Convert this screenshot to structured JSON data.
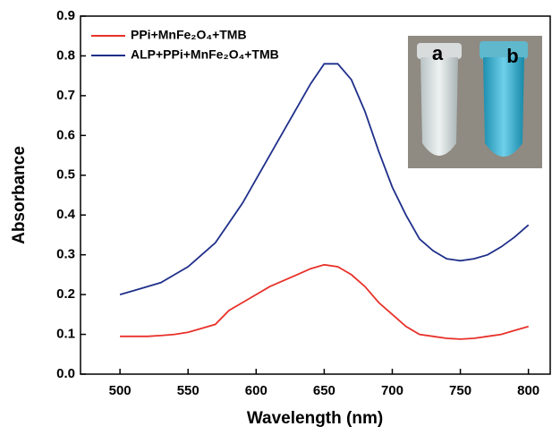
{
  "chart_data": {
    "type": "line",
    "x_label": "Wavelength (nm)",
    "y_label": "Absorbance",
    "x": [
      500,
      510,
      520,
      530,
      540,
      550,
      560,
      570,
      580,
      590,
      600,
      610,
      620,
      630,
      640,
      650,
      660,
      670,
      680,
      690,
      700,
      710,
      720,
      730,
      740,
      750,
      760,
      770,
      780,
      790,
      800
    ],
    "series": [
      {
        "name": "PPi+MnFe₂O₄+TMB",
        "color": "#e8312a",
        "values": [
          0.095,
          0.095,
          0.095,
          0.097,
          0.1,
          0.105,
          0.115,
          0.125,
          0.16,
          0.18,
          0.2,
          0.22,
          0.235,
          0.25,
          0.265,
          0.275,
          0.27,
          0.25,
          0.22,
          0.18,
          0.15,
          0.12,
          0.1,
          0.095,
          0.09,
          0.088,
          0.09,
          0.095,
          0.1,
          0.11,
          0.12
        ]
      },
      {
        "name": "ALP+PPi+MnFe₂O₄+TMB",
        "color": "#1f2f8a",
        "values": [
          0.2,
          0.21,
          0.22,
          0.23,
          0.25,
          0.27,
          0.3,
          0.33,
          0.38,
          0.43,
          0.49,
          0.55,
          0.61,
          0.67,
          0.73,
          0.78,
          0.78,
          0.74,
          0.66,
          0.56,
          0.47,
          0.4,
          0.34,
          0.31,
          0.29,
          0.285,
          0.29,
          0.3,
          0.32,
          0.345,
          0.375
        ]
      }
    ],
    "xlim": [
      471,
      816
    ],
    "ylim": [
      0,
      0.9
    ],
    "xticks": [
      500,
      550,
      600,
      650,
      700,
      750,
      800
    ],
    "yticks": [
      {
        "value": 0,
        "label": "0.0"
      },
      0.1,
      0.2,
      0.3,
      0.4,
      0.5,
      0.6,
      0.7,
      0.8,
      0.9
    ],
    "legend": "upper left",
    "inset_labels": [
      "a",
      "b"
    ]
  }
}
